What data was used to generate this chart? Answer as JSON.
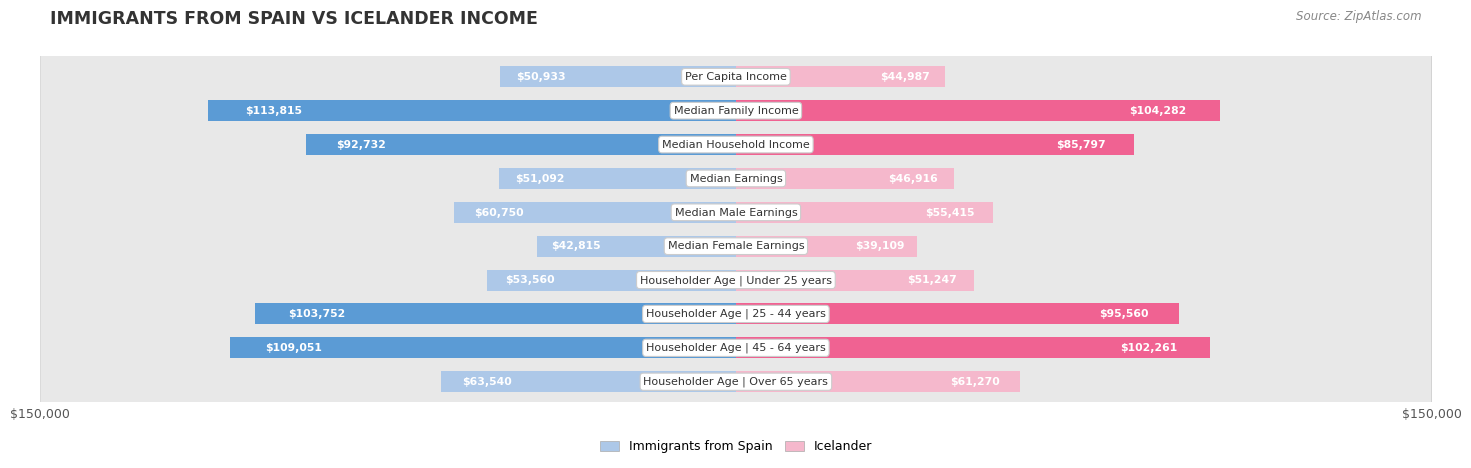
{
  "title": "IMMIGRANTS FROM SPAIN VS ICELANDER INCOME",
  "source": "Source: ZipAtlas.com",
  "categories": [
    "Per Capita Income",
    "Median Family Income",
    "Median Household Income",
    "Median Earnings",
    "Median Male Earnings",
    "Median Female Earnings",
    "Householder Age | Under 25 years",
    "Householder Age | 25 - 44 years",
    "Householder Age | 45 - 64 years",
    "Householder Age | Over 65 years"
  ],
  "spain_values": [
    50933,
    113815,
    92732,
    51092,
    60750,
    42815,
    53560,
    103752,
    109051,
    63540
  ],
  "iceland_values": [
    44987,
    104282,
    85797,
    46916,
    55415,
    39109,
    51247,
    95560,
    102261,
    61270
  ],
  "spain_color_light": "#adc8e8",
  "spain_color_dark": "#5b9bd5",
  "iceland_color_light": "#f5b8cc",
  "iceland_color_dark": "#f06292",
  "row_bg_light": "#f2f2f2",
  "row_bg_dark": "#e8e8e8",
  "max_value": 150000,
  "xlabel_left": "$150,000",
  "xlabel_right": "$150,000",
  "legend_spain": "Immigrants from Spain",
  "legend_iceland": "Icelander",
  "background_color": "#ffffff",
  "dark_threshold": 70000
}
